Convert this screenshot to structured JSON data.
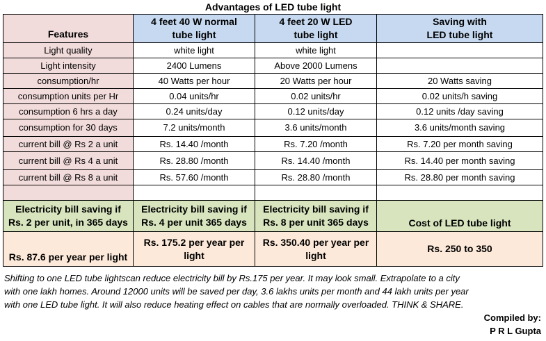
{
  "title": "Advantages of LED tube light",
  "header": {
    "features": "Features",
    "col1": [
      "4 feet 40 W normal",
      "tube light"
    ],
    "col2": [
      "4 feet 20 W LED",
      "tube light"
    ],
    "col3": [
      "Saving with",
      "LED tube light"
    ]
  },
  "rows": [
    [
      "Light quality",
      "white light",
      "white light",
      ""
    ],
    [
      "Light intensity",
      "2400 Lumens",
      "Above 2000 Lumens",
      ""
    ],
    [
      "consumption/hr",
      "40 Watts per hour",
      "20 Watts per hour",
      "20 Watts saving"
    ],
    [
      "consumption units per Hr",
      "0.04 units/hr",
      "0.02 units/hr",
      "0.02 units/h saving"
    ],
    [
      "consumption  6 hrs a day",
      "0.24 units/day",
      "0.12 units/day",
      "0.12 units /day saving"
    ],
    [
      "consumption  for 30 days",
      "7.2 units/month",
      "3.6 units/month",
      "3.6 units/month  saving"
    ],
    [
      "current bill @ Rs 2 a unit",
      "Rs. 14.40 /month",
      "Rs. 7.20 /month",
      "Rs. 7.20 per month  saving"
    ],
    [
      "current bill @ Rs 4 a unit",
      "Rs. 28.80  /month",
      "Rs. 14.40 /month",
      "Rs. 14.40 per month  saving"
    ],
    [
      "current bill @ Rs 8 a unit",
      "Rs. 57.60 /month",
      "Rs. 28.80  /month",
      "Rs. 28.80 per month  saving"
    ]
  ],
  "savings_header": [
    [
      "Electricity bill saving if",
      "Rs. 2 per unit, in 365 days"
    ],
    [
      "Electricity bill saving if",
      "Rs.  4 per unit 365 days"
    ],
    [
      "Electricity bill saving if",
      "Rs. 8 per unit 365 days"
    ],
    [
      "Cost of LED tube light"
    ]
  ],
  "savings_values": [
    "Rs. 87.6 per year per light",
    [
      "Rs. 175.2 per year per",
      "light"
    ],
    [
      "Rs. 350.40 per year per",
      "light"
    ],
    "Rs. 250 to 350"
  ],
  "note": [
    "Shifting to one LED tube lightscan reduce electricity bill by Rs.175 per year.  It may look small. Extrapolate to a city",
    "with one lakh homes. Around 12000 units will be saved per day, 3.6 lakhs units per month and  44 lakh units per year",
    "with one LED tube light. It will also reduce heating effect on cables that are normally overloaded.  THINK & SHARE."
  ],
  "credit": {
    "line1": "Compiled by:",
    "line2": "P R L Gupta"
  },
  "colors": {
    "pink": "#f2dcdb",
    "blue": "#c6d9f1",
    "green": "#d7e4bd",
    "peach": "#fde9d9"
  }
}
